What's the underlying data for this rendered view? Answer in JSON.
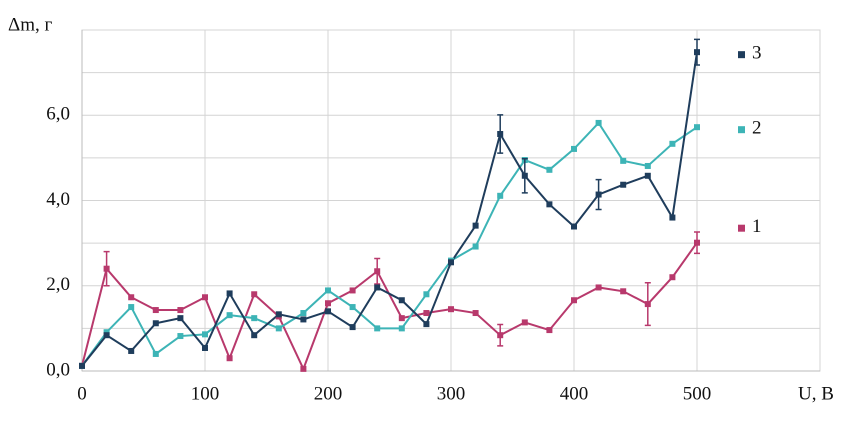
{
  "chart_data": {
    "type": "line",
    "y_label": "Δm, г",
    "x_label": "U, В",
    "x": [
      0,
      20,
      40,
      60,
      80,
      100,
      120,
      140,
      160,
      180,
      200,
      220,
      240,
      260,
      280,
      300,
      320,
      340,
      360,
      380,
      400,
      420,
      440,
      460,
      480,
      500
    ],
    "series": [
      {
        "name": "1",
        "color": "#b8396c",
        "values": [
          0.12,
          2.4,
          1.73,
          1.43,
          1.43,
          1.73,
          0.3,
          1.8,
          1.28,
          0.05,
          1.59,
          1.89,
          2.34,
          1.24,
          1.36,
          1.45,
          1.36,
          0.84,
          1.14,
          0.96,
          1.66,
          1.96,
          1.87,
          1.57,
          2.2,
          3.01
        ],
        "errors": [
          null,
          0.4,
          null,
          null,
          null,
          null,
          null,
          null,
          null,
          null,
          null,
          null,
          0.3,
          null,
          null,
          null,
          null,
          0.25,
          null,
          null,
          null,
          null,
          null,
          0.5,
          null,
          0.25
        ]
      },
      {
        "name": "2",
        "color": "#3db4b6",
        "values": [
          0.12,
          0.91,
          1.5,
          0.4,
          0.82,
          0.86,
          1.31,
          1.24,
          1.0,
          1.36,
          1.89,
          1.5,
          1.0,
          1.0,
          1.8,
          2.59,
          2.92,
          4.11,
          4.95,
          4.72,
          5.21,
          5.82,
          4.93,
          4.81,
          5.33,
          5.72
        ]
      },
      {
        "name": "3",
        "color": "#1f3d5c",
        "values": [
          0.12,
          0.84,
          0.47,
          1.12,
          1.24,
          0.54,
          1.82,
          0.84,
          1.33,
          1.21,
          1.4,
          1.03,
          1.96,
          1.66,
          1.1,
          2.55,
          3.41,
          5.56,
          4.58,
          3.91,
          3.39,
          4.14,
          4.37,
          4.58,
          3.6,
          7.48
        ],
        "errors": [
          null,
          null,
          null,
          null,
          null,
          null,
          null,
          null,
          null,
          null,
          null,
          null,
          null,
          null,
          null,
          null,
          null,
          0.45,
          0.4,
          null,
          null,
          0.35,
          null,
          null,
          null,
          0.3
        ]
      }
    ],
    "xlim": [
      0,
      600
    ],
    "xticks": [
      0,
      100,
      200,
      300,
      400,
      500
    ],
    "ylim": [
      0,
      8
    ],
    "yticks": [
      {
        "value": 0,
        "label": "0,0"
      },
      {
        "value": 2,
        "label": "2,0"
      },
      {
        "value": 4,
        "label": "4,0"
      },
      {
        "value": 6,
        "label": "6,0"
      }
    ],
    "minor_yticks": [
      1,
      3,
      5,
      7
    ],
    "grid": true
  }
}
